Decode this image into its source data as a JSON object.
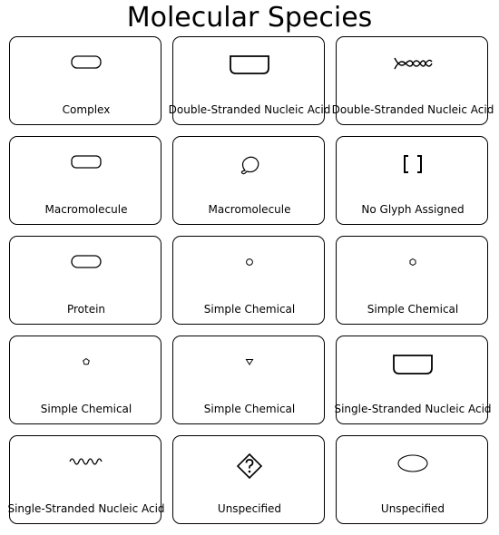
{
  "title": "Molecular Species",
  "cards": [
    {
      "label": "Complex",
      "icon": "complex-icon"
    },
    {
      "label": "Double-Stranded Nucleic Acid",
      "icon": "double-stranded-nucleic-acid-icon"
    },
    {
      "label": "Double-Stranded Nucleic Acid",
      "icon": "double-helix-icon"
    },
    {
      "label": "Macromolecule",
      "icon": "macromolecule-icon"
    },
    {
      "label": "Macromolecule",
      "icon": "macromolecule-blob-icon"
    },
    {
      "label": "No Glyph Assigned",
      "icon": "brackets-icon"
    },
    {
      "label": "Protein",
      "icon": "protein-icon"
    },
    {
      "label": "Simple Chemical",
      "icon": "circle-icon"
    },
    {
      "label": "Simple Chemical",
      "icon": "hexagon-icon"
    },
    {
      "label": "Simple Chemical",
      "icon": "pentagon-icon"
    },
    {
      "label": "Simple Chemical",
      "icon": "triangle-icon"
    },
    {
      "label": "Single-Stranded Nucleic Acid",
      "icon": "single-stranded-nucleic-acid-icon"
    },
    {
      "label": "Single-Stranded Nucleic Acid",
      "icon": "wave-icon"
    },
    {
      "label": "Unspecified",
      "icon": "diamond-question-icon"
    },
    {
      "label": "Unspecified",
      "icon": "ellipse-icon"
    }
  ]
}
